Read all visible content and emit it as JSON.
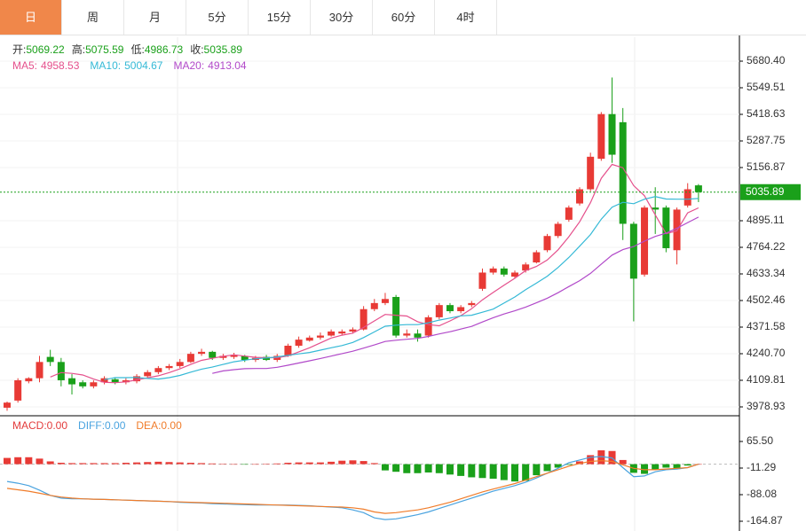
{
  "tabs": {
    "items": [
      "日",
      "周",
      "月",
      "5分",
      "15分",
      "30分",
      "60分",
      "4时"
    ],
    "active": 0
  },
  "chart_data": [
    {
      "type": "candlestick",
      "ylim": [
        3939.7,
        5798.2
      ],
      "yticks": [
        {
          "value": 5680.4,
          "label": "5680.40"
        },
        {
          "value": 5549.51,
          "label": "5549.51"
        },
        {
          "value": 5418.63,
          "label": "5418.63"
        },
        {
          "value": 5287.75,
          "label": "5287.75"
        },
        {
          "value": 5156.87,
          "label": "5156.87"
        },
        {
          "value": 4895.11,
          "label": "4895.11"
        },
        {
          "value": 4764.22,
          "label": "4764.22"
        },
        {
          "value": 4633.34,
          "label": "4633.34"
        },
        {
          "value": 4502.46,
          "label": "4502.46"
        },
        {
          "value": 4371.58,
          "label": "4371.58"
        },
        {
          "value": 4240.7,
          "label": "4240.70"
        },
        {
          "value": 4109.81,
          "label": "4109.81"
        },
        {
          "value": 3978.93,
          "label": "3978.93"
        }
      ],
      "grid": true,
      "info_labels": [
        "开:",
        "高:",
        "低:",
        "收:"
      ],
      "up_color": "#e83a35",
      "down_color": "#1aa01a",
      "candles": {
        "open": [
          3975,
          4010,
          4105,
          4120,
          4225,
          4200,
          4120,
          4100,
          4080,
          4100,
          4115,
          4100,
          4105,
          4130,
          4150,
          4170,
          4180,
          4200,
          4240,
          4250,
          4220,
          4225,
          4230,
          4210,
          4225,
          4210,
          4230,
          4280,
          4305,
          4320,
          4330,
          4340,
          4350,
          4360,
          4460,
          4490,
          4520,
          4330,
          4340,
          4330,
          4420,
          4480,
          4450,
          4480,
          4560,
          4640,
          4660,
          4620,
          4650,
          4690,
          4750,
          4820,
          4900,
          4980,
          5050,
          5200,
          5420,
          5380,
          4880,
          4630,
          4960,
          4960,
          4750,
          4970,
          5069.22
        ],
        "high": [
          4005,
          4120,
          4125,
          4230,
          4260,
          4220,
          4140,
          4110,
          4110,
          4130,
          4125,
          4120,
          4140,
          4160,
          4180,
          4190,
          4215,
          4250,
          4265,
          4255,
          4240,
          4245,
          4235,
          4230,
          4235,
          4240,
          4290,
          4325,
          4330,
          4345,
          4360,
          4360,
          4370,
          4475,
          4510,
          4540,
          4530,
          4360,
          4360,
          4430,
          4490,
          4490,
          4480,
          4500,
          4660,
          4670,
          4670,
          4650,
          4690,
          4750,
          4830,
          4890,
          4970,
          5060,
          5230,
          5430,
          5600,
          5450,
          4890,
          4970,
          5060,
          4970,
          4960,
          5080,
          5075.59
        ],
        "low": [
          3960,
          4000,
          4095,
          4100,
          4180,
          4080,
          4040,
          4070,
          4070,
          4090,
          4090,
          4090,
          4095,
          4120,
          4140,
          4160,
          4170,
          4195,
          4230,
          4210,
          4210,
          4215,
          4200,
          4200,
          4205,
          4200,
          4225,
          4270,
          4300,
          4310,
          4325,
          4330,
          4340,
          4355,
          4450,
          4480,
          4320,
          4320,
          4300,
          4320,
          4410,
          4440,
          4440,
          4470,
          4550,
          4630,
          4620,
          4610,
          4640,
          4685,
          4740,
          4810,
          4890,
          4970,
          5040,
          5190,
          5180,
          4800,
          4400,
          4620,
          4830,
          4740,
          4680,
          4960,
          4986.73
        ],
        "close": [
          4000,
          4110,
          4120,
          4200,
          4200,
          4110,
          4090,
          4080,
          4100,
          4120,
          4100,
          4110,
          4130,
          4150,
          4170,
          4180,
          4200,
          4240,
          4250,
          4220,
          4230,
          4235,
          4210,
          4220,
          4210,
          4230,
          4280,
          4310,
          4320,
          4330,
          4350,
          4350,
          4360,
          4460,
          4490,
          4510,
          4330,
          4340,
          4320,
          4420,
          4480,
          4450,
          4470,
          4490,
          4640,
          4660,
          4630,
          4640,
          4680,
          4740,
          4820,
          4880,
          4960,
          5050,
          5210,
          5420,
          5220,
          4880,
          4610,
          4960,
          4950,
          4760,
          4950,
          5050,
          5035.89
        ]
      },
      "series": [
        {
          "name": "MA5:",
          "color": "#e5508c",
          "values": [
            null,
            null,
            null,
            null,
            4126,
            4148,
            4144,
            4136,
            4116,
            4100,
            4098,
            4102,
            4112,
            4122,
            4132,
            4148,
            4166,
            4188,
            4208,
            4218,
            4228,
            4235,
            4229,
            4223,
            4221,
            4221,
            4230,
            4250,
            4270,
            4294,
            4318,
            4332,
            4342,
            4370,
            4402,
            4434,
            4430,
            4426,
            4398,
            4384,
            4378,
            4402,
            4428,
            4462,
            4506,
            4542,
            4578,
            4612,
            4650,
            4670,
            4702,
            4752,
            4816,
            4890,
            4984,
            5104,
            5172,
            5156,
            5068,
            5018,
            4924,
            4832,
            4846,
            4934,
            4958.53
          ]
        },
        {
          "name": "MA10:",
          "color": "#35b9d6",
          "values": [
            null,
            null,
            null,
            null,
            null,
            null,
            null,
            null,
            null,
            4113,
            4123,
            4123,
            4124,
            4119,
            4116,
            4123,
            4134,
            4150,
            4165,
            4175,
            4188,
            4201,
            4209,
            4216,
            4220,
            4225,
            4233,
            4240,
            4247,
            4258,
            4270,
            4281,
            4296,
            4320,
            4348,
            4376,
            4381,
            4384,
            4384,
            4393,
            4406,
            4416,
            4427,
            4430,
            4445,
            4460,
            4490,
            4520,
            4556,
            4588,
            4622,
            4665,
            4714,
            4770,
            4827,
            4903,
            4962,
            4986,
            4979,
            5001,
            5014,
            5002,
            5001,
            5001,
            5004.67
          ]
        },
        {
          "name": "MA20:",
          "color": "#b149c9",
          "values": [
            null,
            null,
            null,
            null,
            null,
            null,
            null,
            null,
            null,
            null,
            null,
            null,
            null,
            null,
            null,
            null,
            null,
            null,
            null,
            4144,
            4156,
            4162,
            4167,
            4168,
            4168,
            4174,
            4184,
            4195,
            4206,
            4217,
            4229,
            4241,
            4253,
            4268,
            4284,
            4301,
            4307,
            4312,
            4316,
            4326,
            4338,
            4349,
            4362,
            4375,
            4397,
            4418,
            4436,
            4452,
            4470,
            4491,
            4514,
            4541,
            4571,
            4600,
            4636,
            4682,
            4726,
            4753,
            4768,
            4795,
            4818,
            4834,
            4858,
            4886,
            4913.04
          ]
        }
      ]
    },
    {
      "type": "macd",
      "ylim": [
        -193.0,
        137.2
      ],
      "yticks": [
        {
          "value": 65.5,
          "label": "65.50"
        },
        {
          "value": -11.29,
          "label": "-11.29"
        },
        {
          "value": -88.08,
          "label": "-88.08"
        },
        {
          "value": -164.87,
          "label": "-164.87"
        }
      ],
      "histogram": {
        "name": "MACD:",
        "last_label": "0.00",
        "color": "#e33b3b",
        "up_color": "#e83a35",
        "down_color": "#1aa01a",
        "values": [
          18,
          20,
          20,
          16,
          8,
          4,
          3,
          3,
          3,
          3,
          3,
          4,
          5,
          6,
          7,
          6,
          5,
          4,
          3,
          2,
          1,
          0,
          -1,
          0,
          1,
          2,
          4,
          5,
          5,
          5,
          7,
          10,
          11,
          9,
          3,
          -18,
          -22,
          -26,
          -26,
          -24,
          -26,
          -30,
          -34,
          -38,
          -40,
          -42,
          -46,
          -50,
          -48,
          -32,
          -20,
          -10,
          -2,
          8,
          26,
          40,
          38,
          12,
          -25,
          -28,
          -16,
          -10,
          -14,
          -4,
          0
        ]
      },
      "series": [
        {
          "name": "DIFF:",
          "last_label": "0.00",
          "color": "#4aa3df",
          "values": [
            -50,
            -55,
            -62,
            -75,
            -90,
            -98,
            -100,
            -100,
            -101,
            -102,
            -103,
            -104,
            -105,
            -106,
            -107,
            -108,
            -110,
            -111,
            -112,
            -114,
            -115,
            -116,
            -117,
            -118,
            -118,
            -118,
            -118,
            -119,
            -120,
            -122,
            -124,
            -126,
            -132,
            -140,
            -155,
            -160,
            -158,
            -152,
            -146,
            -138,
            -128,
            -118,
            -108,
            -98,
            -88,
            -78,
            -70,
            -62,
            -52,
            -40,
            -26,
            -12,
            4,
            12,
            20,
            22,
            18,
            -10,
            -36,
            -34,
            -22,
            -16,
            -14,
            -10,
            0
          ]
        },
        {
          "name": "DEA:",
          "last_label": "0.00",
          "color": "#f07c2a",
          "values": [
            -70,
            -74,
            -78,
            -84,
            -90,
            -95,
            -98,
            -100,
            -101,
            -102,
            -103,
            -104,
            -105,
            -106,
            -107,
            -108,
            -109,
            -110,
            -111,
            -112,
            -113,
            -114,
            -115,
            -116,
            -117,
            -118,
            -119,
            -120,
            -121,
            -122,
            -123,
            -124,
            -126,
            -130,
            -138,
            -142,
            -140,
            -136,
            -132,
            -126,
            -118,
            -110,
            -100,
            -90,
            -80,
            -72,
            -64,
            -56,
            -46,
            -36,
            -26,
            -16,
            -6,
            2,
            8,
            10,
            8,
            -2,
            -12,
            -16,
            -16,
            -14,
            -12,
            -10,
            0
          ]
        }
      ]
    }
  ]
}
